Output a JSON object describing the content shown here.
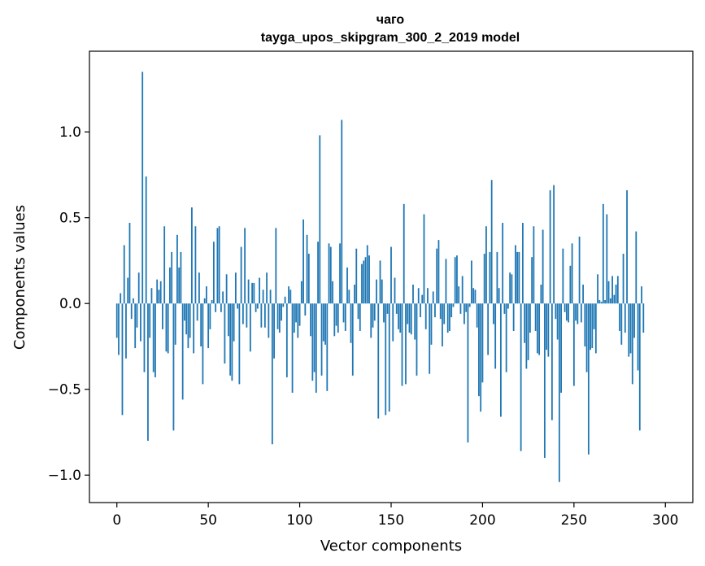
{
  "chart_data": {
    "type": "bar",
    "title": "чаго",
    "subtitle": "tayga_upos_skipgram_300_2_2019 model",
    "xlabel": "Vector components",
    "ylabel": "Components values",
    "xlim": [
      -15,
      315
    ],
    "ylim": [
      -1.16,
      1.47
    ],
    "xticks": [
      0,
      50,
      100,
      150,
      200,
      250,
      300
    ],
    "xtick_labels": [
      "0",
      "50",
      "100",
      "150",
      "200",
      "250",
      "300"
    ],
    "yticks": [
      -1.0,
      -0.5,
      0.0,
      0.5,
      1.0
    ],
    "ytick_labels": [
      "−1.0",
      "−0.5",
      "0.0",
      "0.5",
      "1.0"
    ],
    "bar_color": "#1f77b4",
    "grid": false,
    "values": [
      -0.2,
      -0.3,
      0.06,
      -0.65,
      0.34,
      -0.32,
      0.15,
      0.47,
      -0.09,
      0.03,
      -0.26,
      -0.14,
      0.18,
      -0.22,
      1.35,
      -0.4,
      0.74,
      -0.8,
      -0.2,
      0.09,
      -0.4,
      -0.43,
      0.14,
      0.08,
      0.13,
      -0.15,
      0.45,
      -0.28,
      -0.29,
      0.21,
      0.3,
      -0.74,
      -0.24,
      0.4,
      0.21,
      0.3,
      -0.56,
      -0.1,
      -0.18,
      -0.26,
      -0.2,
      0.56,
      -0.29,
      0.45,
      -0.1,
      0.18,
      -0.25,
      -0.47,
      0.03,
      0.1,
      -0.26,
      -0.15,
      0.02,
      0.36,
      -0.05,
      0.44,
      0.45,
      -0.05,
      0.07,
      -0.35,
      0.17,
      -0.19,
      -0.42,
      -0.45,
      -0.22,
      0.18,
      -0.03,
      -0.47,
      0.33,
      -0.12,
      0.44,
      -0.14,
      0.14,
      -0.28,
      0.12,
      0.12,
      -0.05,
      -0.03,
      0.15,
      -0.14,
      0.08,
      -0.14,
      0.18,
      -0.2,
      0.08,
      -0.82,
      -0.32,
      0.44,
      -0.15,
      -0.17,
      -0.1,
      -0.02,
      0.04,
      -0.43,
      0.1,
      0.08,
      -0.52,
      -0.17,
      -0.11,
      -0.2,
      -0.13,
      0.13,
      0.49,
      -0.07,
      0.4,
      0.29,
      -0.19,
      -0.45,
      -0.4,
      -0.52,
      0.36,
      0.98,
      -0.42,
      -0.22,
      -0.24,
      -0.51,
      0.35,
      0.33,
      0.13,
      -0.19,
      -0.13,
      -0.17,
      0.35,
      1.07,
      -0.11,
      -0.16,
      0.21,
      0.08,
      -0.23,
      -0.42,
      0.11,
      0.32,
      -0.09,
      -0.16,
      0.23,
      0.25,
      0.27,
      0.34,
      0.28,
      -0.2,
      -0.14,
      -0.1,
      0.14,
      -0.67,
      0.25,
      0.14,
      -0.11,
      -0.65,
      -0.06,
      -0.63,
      0.33,
      -0.22,
      0.15,
      -0.06,
      -0.15,
      -0.17,
      -0.48,
      0.58,
      -0.47,
      -0.12,
      -0.17,
      -0.18,
      0.11,
      -0.21,
      -0.42,
      0.09,
      -0.08,
      0.05,
      0.52,
      -0.15,
      0.09,
      -0.41,
      -0.24,
      0.07,
      -0.08,
      0.32,
      0.37,
      -0.09,
      -0.25,
      -0.12,
      0.26,
      -0.17,
      -0.16,
      -0.08,
      -0.02,
      0.27,
      0.28,
      0.1,
      -0.06,
      0.16,
      -0.12,
      -0.05,
      -0.81,
      -0.02,
      0.25,
      0.09,
      0.08,
      -0.14,
      -0.54,
      -0.63,
      -0.46,
      0.29,
      0.45,
      -0.3,
      0.3,
      0.72,
      -0.12,
      -0.38,
      0.3,
      0.09,
      -0.66,
      0.47,
      -0.06,
      -0.4,
      -0.03,
      0.18,
      0.17,
      -0.16,
      0.34,
      0.3,
      0.3,
      -0.86,
      0.47,
      -0.23,
      -0.38,
      -0.33,
      -0.17,
      0.27,
      0.45,
      -0.16,
      -0.29,
      -0.3,
      0.11,
      0.43,
      -0.9,
      -0.27,
      -0.31,
      0.66,
      -0.68,
      0.69,
      -0.09,
      -0.21,
      -1.04,
      -0.52,
      0.32,
      -0.05,
      -0.1,
      -0.11,
      0.22,
      0.35,
      -0.48,
      -0.1,
      -0.12,
      0.39,
      -0.11,
      0.11,
      -0.25,
      -0.4,
      -0.88,
      -0.27,
      -0.26,
      -0.15,
      -0.29,
      0.17,
      0.02,
      0.01,
      0.58,
      0.02,
      0.52,
      0.13,
      0.03,
      0.16,
      0.05,
      0.11,
      0.16,
      -0.16,
      -0.24,
      0.29,
      -0.17,
      0.66,
      -0.31,
      -0.29,
      -0.47,
      -0.2,
      0.42,
      -0.39,
      -0.74,
      0.1,
      -0.17
    ]
  }
}
